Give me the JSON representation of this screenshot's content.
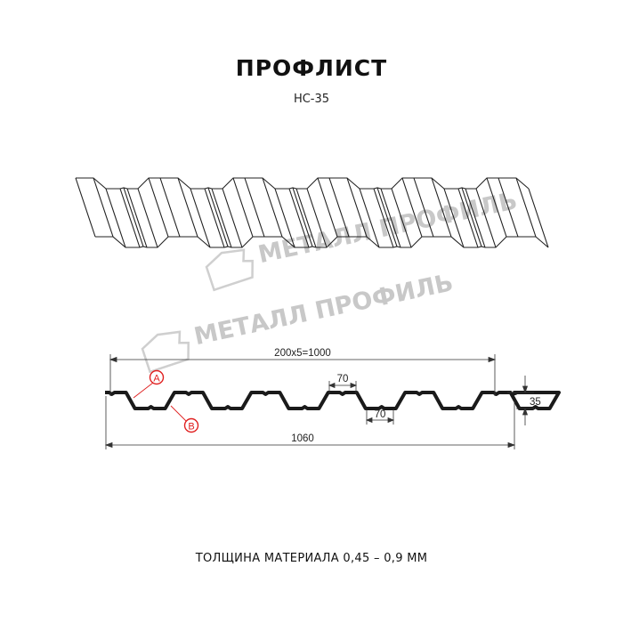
{
  "header": {
    "title": "ПРОФЛИСТ",
    "subtitle": "НС-35"
  },
  "watermark": "МЕТАЛЛ ПРОФИЛЬ",
  "dimensions": {
    "pitch": "200x5=1000",
    "top_width": "70",
    "bottom_width": "70",
    "height": "35",
    "total_width": "1060"
  },
  "markers": {
    "a": "A",
    "b": "B"
  },
  "footer": {
    "thickness": "ТОЛЩИНА МАТЕРИАЛА 0,45 – 0,9 ММ"
  },
  "colors": {
    "profile": "#1a1a1a",
    "marker": "#e02020",
    "watermark": "#c8c8c8"
  }
}
